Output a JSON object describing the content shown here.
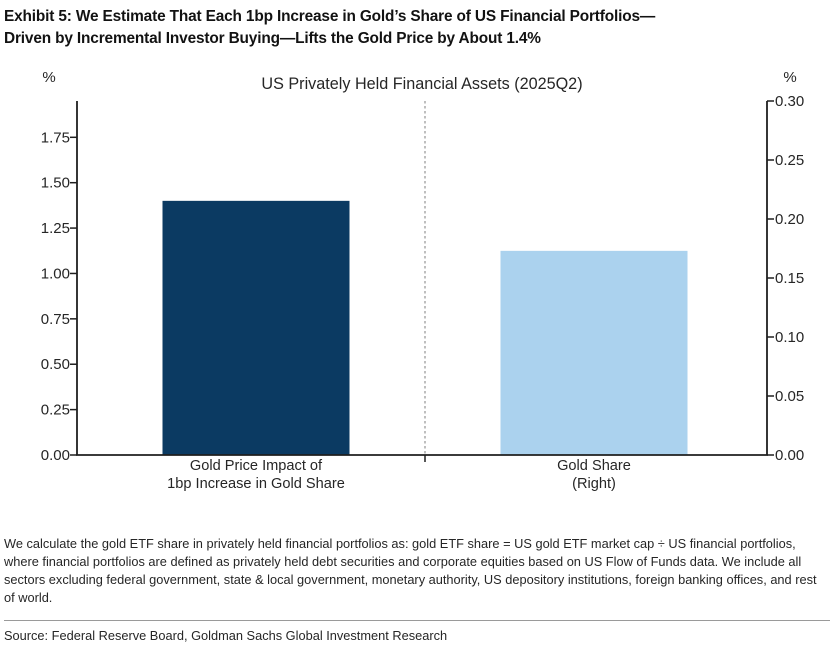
{
  "exhibit": {
    "title_lines": [
      "Exhibit 5: We Estimate That Each 1bp Increase in Gold’s Share of US Financial Portfolios—",
      "Driven by Incremental Investor Buying—Lifts the Gold Price by About 1.4%"
    ]
  },
  "chart_data": {
    "type": "bar",
    "title": "US Privately Held Financial Assets (2025Q2)",
    "grid": false,
    "legend": false,
    "separator_style": "dashed-vertical-line",
    "axis_color": "#262626",
    "left_axis": {
      "unit_label": "%",
      "tick_labels": [
        "0.00",
        "0.25",
        "0.50",
        "0.75",
        "1.00",
        "1.25",
        "1.50",
        "1.75"
      ],
      "range": [
        0,
        1.95
      ]
    },
    "right_axis": {
      "unit_label": "%",
      "tick_labels": [
        "0.00",
        "0.05",
        "0.10",
        "0.15",
        "0.20",
        "0.25",
        "0.30"
      ],
      "range": [
        0,
        0.3
      ]
    },
    "bars": [
      {
        "name": "gold-price-impact",
        "label_lines": [
          "Gold Price Impact of",
          "1bp Increase in Gold Share"
        ],
        "value": 1.4,
        "axis": "left",
        "color": "#0b3a62"
      },
      {
        "name": "gold-share",
        "label_lines": [
          "Gold Share",
          "(Right)"
        ],
        "value": 0.173,
        "axis": "right",
        "color": "#abd2ee"
      }
    ]
  },
  "notes": {
    "footnote": "We calculate the gold ETF share in privately held financial portfolios as: gold ETF share = US gold ETF market cap ÷ US financial portfolios, where financial portfolios are defined as privately held debt securities and corporate equities based on US Flow of Funds data. We include all sectors excluding federal government, state & local government, monetary authority, US depository institutions, foreign banking offices, and rest of world.",
    "source": "Source: Federal Reserve Board, Goldman Sachs Global Investment Research"
  }
}
